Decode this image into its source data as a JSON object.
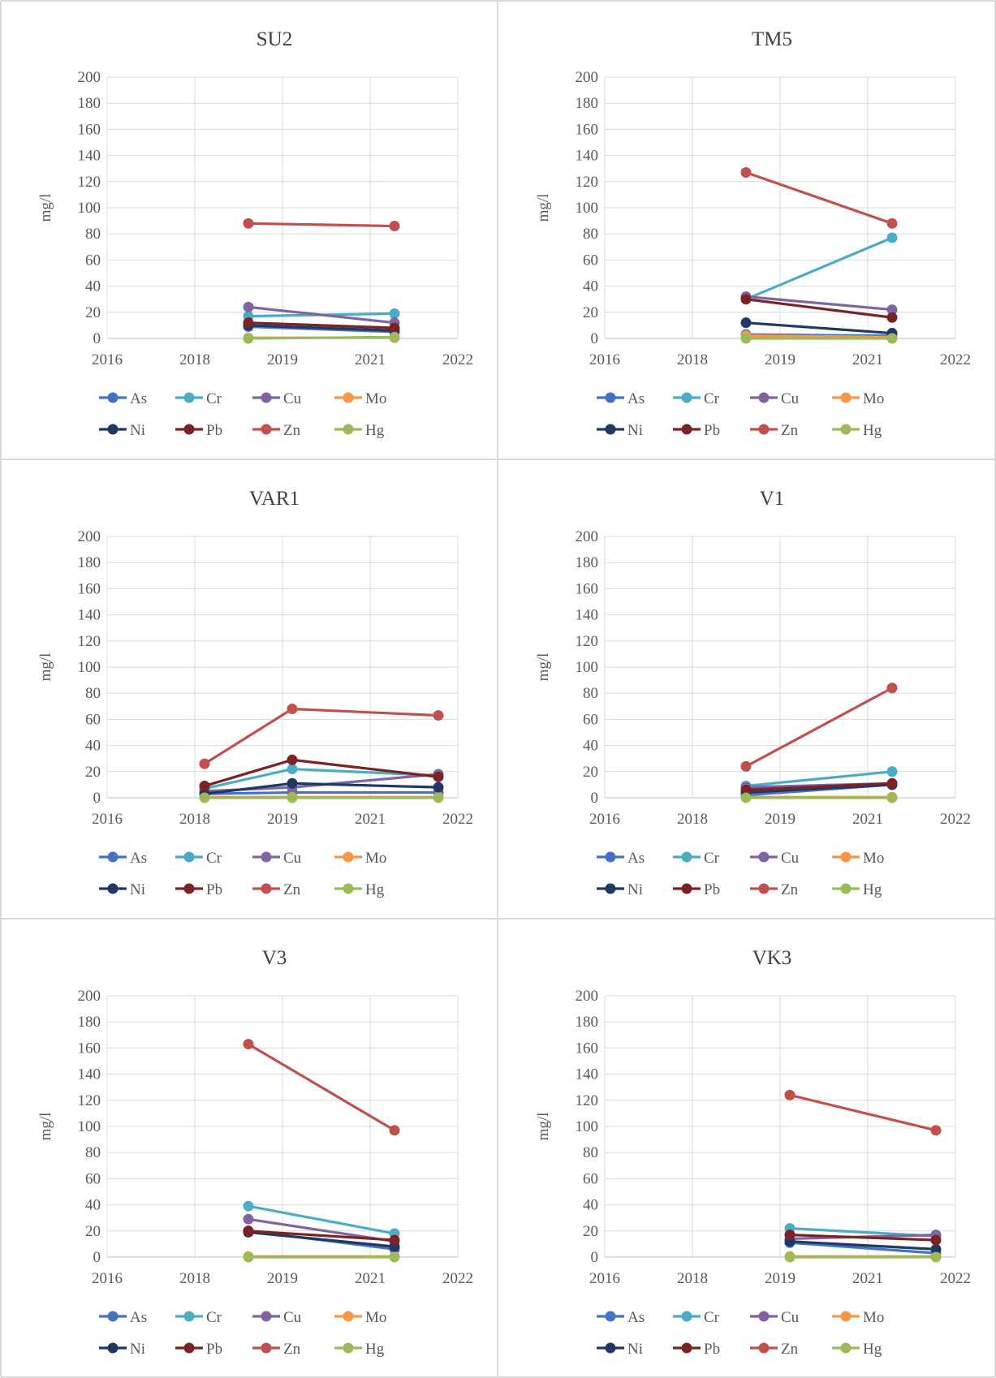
{
  "colors": {
    "As": "#4472c4",
    "Cr": "#4bacc6",
    "Cu": "#8064a2",
    "Mo": "#f79646",
    "Ni": "#1f3864",
    "Pb": "#7b2222",
    "Zn": "#c0504d",
    "Hg": "#9bbb59",
    "border": "#d9d9d9"
  },
  "chart_data": [
    {
      "type": "line",
      "title": "SU2",
      "ylabel": "mg/l",
      "xlabel": "",
      "ylim": [
        0,
        200
      ],
      "yticks": [
        0,
        20,
        40,
        60,
        80,
        100,
        120,
        140,
        160,
        180,
        200
      ],
      "xticks": [
        "2016",
        "2018",
        "2019",
        "2021",
        "2022"
      ],
      "grid": true,
      "legend": "bottom",
      "series": [
        {
          "name": "As",
          "points": [
            {
              "x": "2018-06",
              "y": 9
            },
            {
              "x": "2020-12",
              "y": 5
            }
          ]
        },
        {
          "name": "Cr",
          "points": [
            {
              "x": "2018-06",
              "y": 17
            },
            {
              "x": "2020-12",
              "y": 19
            }
          ]
        },
        {
          "name": "Cu",
          "points": [
            {
              "x": "2018-06",
              "y": 24
            },
            {
              "x": "2020-12",
              "y": 12
            }
          ]
        },
        {
          "name": "Mo",
          "points": [
            {
              "x": "2018-06",
              "y": 0.5
            },
            {
              "x": "2020-12",
              "y": 0.5
            }
          ]
        },
        {
          "name": "Ni",
          "points": [
            {
              "x": "2018-06",
              "y": 10
            },
            {
              "x": "2020-12",
              "y": 6
            }
          ]
        },
        {
          "name": "Pb",
          "points": [
            {
              "x": "2018-06",
              "y": 12
            },
            {
              "x": "2020-12",
              "y": 8
            }
          ]
        },
        {
          "name": "Zn",
          "points": [
            {
              "x": "2018-06",
              "y": 88
            },
            {
              "x": "2020-12",
              "y": 86
            }
          ]
        },
        {
          "name": "Hg",
          "points": [
            {
              "x": "2018-06",
              "y": 0
            },
            {
              "x": "2020-12",
              "y": 1
            }
          ]
        }
      ]
    },
    {
      "type": "line",
      "title": "TM5",
      "ylabel": "mg/l",
      "xlabel": "",
      "ylim": [
        0,
        200
      ],
      "yticks": [
        0,
        20,
        40,
        60,
        80,
        100,
        120,
        140,
        160,
        180,
        200
      ],
      "xticks": [
        "2016",
        "2018",
        "2019",
        "2021",
        "2022"
      ],
      "grid": true,
      "legend": "bottom",
      "series": [
        {
          "name": "As",
          "points": [
            {
              "x": "2018-06",
              "y": 3
            },
            {
              "x": "2020-12",
              "y": 2
            }
          ]
        },
        {
          "name": "Cr",
          "points": [
            {
              "x": "2018-06",
              "y": 30
            },
            {
              "x": "2020-12",
              "y": 77
            }
          ]
        },
        {
          "name": "Cu",
          "points": [
            {
              "x": "2018-06",
              "y": 32
            },
            {
              "x": "2020-12",
              "y": 22
            }
          ]
        },
        {
          "name": "Mo",
          "points": [
            {
              "x": "2018-06",
              "y": 2
            },
            {
              "x": "2020-12",
              "y": 1
            }
          ]
        },
        {
          "name": "Ni",
          "points": [
            {
              "x": "2018-06",
              "y": 12
            },
            {
              "x": "2020-12",
              "y": 4
            }
          ]
        },
        {
          "name": "Pb",
          "points": [
            {
              "x": "2018-06",
              "y": 30
            },
            {
              "x": "2020-12",
              "y": 16
            }
          ]
        },
        {
          "name": "Zn",
          "points": [
            {
              "x": "2018-06",
              "y": 127
            },
            {
              "x": "2020-12",
              "y": 88
            }
          ]
        },
        {
          "name": "Hg",
          "points": [
            {
              "x": "2018-06",
              "y": 0
            },
            {
              "x": "2020-12",
              "y": 0
            }
          ]
        }
      ]
    },
    {
      "type": "line",
      "title": "VAR1",
      "ylabel": "mg/l",
      "xlabel": "",
      "ylim": [
        0,
        200
      ],
      "yticks": [
        0,
        20,
        40,
        60,
        80,
        100,
        120,
        140,
        160,
        180,
        200
      ],
      "xticks": [
        "2016",
        "2018",
        "2019",
        "2021",
        "2022"
      ],
      "grid": true,
      "legend": "bottom",
      "series": [
        {
          "name": "As",
          "points": [
            {
              "x": "2017-09",
              "y": 3
            },
            {
              "x": "2019-03",
              "y": 4
            },
            {
              "x": "2021-09",
              "y": 4
            }
          ]
        },
        {
          "name": "Cr",
          "points": [
            {
              "x": "2017-09",
              "y": 7
            },
            {
              "x": "2019-03",
              "y": 22
            },
            {
              "x": "2021-09",
              "y": 17
            }
          ]
        },
        {
          "name": "Cu",
          "points": [
            {
              "x": "2017-09",
              "y": 5
            },
            {
              "x": "2019-03",
              "y": 8
            },
            {
              "x": "2021-09",
              "y": 18
            }
          ]
        },
        {
          "name": "Mo",
          "points": [
            {
              "x": "2017-09",
              "y": 0.5
            },
            {
              "x": "2019-03",
              "y": 0.5
            },
            {
              "x": "2021-09",
              "y": 0.5
            }
          ]
        },
        {
          "name": "Ni",
          "points": [
            {
              "x": "2017-09",
              "y": 3
            },
            {
              "x": "2019-03",
              "y": 11
            },
            {
              "x": "2021-09",
              "y": 8
            }
          ]
        },
        {
          "name": "Pb",
          "points": [
            {
              "x": "2017-09",
              "y": 9
            },
            {
              "x": "2019-03",
              "y": 29
            },
            {
              "x": "2021-09",
              "y": 16
            }
          ]
        },
        {
          "name": "Zn",
          "points": [
            {
              "x": "2017-09",
              "y": 26
            },
            {
              "x": "2019-03",
              "y": 68
            },
            {
              "x": "2021-09",
              "y": 63
            }
          ]
        },
        {
          "name": "Hg",
          "points": [
            {
              "x": "2017-09",
              "y": 0
            },
            {
              "x": "2019-03",
              "y": 0
            },
            {
              "x": "2021-09",
              "y": 0
            }
          ]
        }
      ]
    },
    {
      "type": "line",
      "title": "V1",
      "ylabel": "mg/l",
      "xlabel": "",
      "ylim": [
        0,
        200
      ],
      "yticks": [
        0,
        20,
        40,
        60,
        80,
        100,
        120,
        140,
        160,
        180,
        200
      ],
      "xticks": [
        "2016",
        "2018",
        "2019",
        "2021",
        "2022"
      ],
      "grid": true,
      "legend": "bottom",
      "series": [
        {
          "name": "As",
          "points": [
            {
              "x": "2018-06",
              "y": 2
            },
            {
              "x": "2020-12",
              "y": 10
            }
          ]
        },
        {
          "name": "Cr",
          "points": [
            {
              "x": "2018-06",
              "y": 9
            },
            {
              "x": "2020-12",
              "y": 20
            }
          ]
        },
        {
          "name": "Cu",
          "points": [
            {
              "x": "2018-06",
              "y": 8
            },
            {
              "x": "2020-12",
              "y": 11
            }
          ]
        },
        {
          "name": "Mo",
          "points": [
            {
              "x": "2018-06",
              "y": 0.5
            },
            {
              "x": "2020-12",
              "y": 0.5
            }
          ]
        },
        {
          "name": "Ni",
          "points": [
            {
              "x": "2018-06",
              "y": 4
            },
            {
              "x": "2020-12",
              "y": 10
            }
          ]
        },
        {
          "name": "Pb",
          "points": [
            {
              "x": "2018-06",
              "y": 6
            },
            {
              "x": "2020-12",
              "y": 11
            }
          ]
        },
        {
          "name": "Zn",
          "points": [
            {
              "x": "2018-06",
              "y": 24
            },
            {
              "x": "2020-12",
              "y": 84
            }
          ]
        },
        {
          "name": "Hg",
          "points": [
            {
              "x": "2018-06",
              "y": 0
            },
            {
              "x": "2020-12",
              "y": 0
            }
          ]
        }
      ]
    },
    {
      "type": "line",
      "title": "V3",
      "ylabel": "mg/l",
      "xlabel": "",
      "ylim": [
        0,
        200
      ],
      "yticks": [
        0,
        20,
        40,
        60,
        80,
        100,
        120,
        140,
        160,
        180,
        200
      ],
      "xticks": [
        "2016",
        "2018",
        "2019",
        "2021",
        "2022"
      ],
      "grid": true,
      "legend": "bottom",
      "series": [
        {
          "name": "As",
          "points": [
            {
              "x": "2018-06",
              "y": 20
            },
            {
              "x": "2020-12",
              "y": 6
            }
          ]
        },
        {
          "name": "Cr",
          "points": [
            {
              "x": "2018-06",
              "y": 39
            },
            {
              "x": "2020-12",
              "y": 18
            }
          ]
        },
        {
          "name": "Cu",
          "points": [
            {
              "x": "2018-06",
              "y": 29
            },
            {
              "x": "2020-12",
              "y": 12
            }
          ]
        },
        {
          "name": "Mo",
          "points": [
            {
              "x": "2018-06",
              "y": 0.5
            },
            {
              "x": "2020-12",
              "y": 0.5
            }
          ]
        },
        {
          "name": "Ni",
          "points": [
            {
              "x": "2018-06",
              "y": 19
            },
            {
              "x": "2020-12",
              "y": 8
            }
          ]
        },
        {
          "name": "Pb",
          "points": [
            {
              "x": "2018-06",
              "y": 20
            },
            {
              "x": "2020-12",
              "y": 13
            }
          ]
        },
        {
          "name": "Zn",
          "points": [
            {
              "x": "2018-06",
              "y": 163
            },
            {
              "x": "2020-12",
              "y": 97
            }
          ]
        },
        {
          "name": "Hg",
          "points": [
            {
              "x": "2018-06",
              "y": 0
            },
            {
              "x": "2020-12",
              "y": 0
            }
          ]
        }
      ]
    },
    {
      "type": "line",
      "title": "VK3",
      "ylabel": "mg/l",
      "xlabel": "",
      "ylim": [
        0,
        200
      ],
      "yticks": [
        0,
        20,
        40,
        60,
        80,
        100,
        120,
        140,
        160,
        180,
        200
      ],
      "xticks": [
        "2016",
        "2018",
        "2019",
        "2021",
        "2022"
      ],
      "grid": true,
      "legend": "bottom",
      "series": [
        {
          "name": "As",
          "points": [
            {
              "x": "2019-03",
              "y": 11
            },
            {
              "x": "2021-09",
              "y": 3
            }
          ]
        },
        {
          "name": "Cr",
          "points": [
            {
              "x": "2019-03",
              "y": 22
            },
            {
              "x": "2021-09",
              "y": 16
            }
          ]
        },
        {
          "name": "Cu",
          "points": [
            {
              "x": "2019-03",
              "y": 14
            },
            {
              "x": "2021-09",
              "y": 17
            }
          ]
        },
        {
          "name": "Mo",
          "points": [
            {
              "x": "2019-03",
              "y": 0.5
            },
            {
              "x": "2021-09",
              "y": 0.5
            }
          ]
        },
        {
          "name": "Ni",
          "points": [
            {
              "x": "2019-03",
              "y": 12
            },
            {
              "x": "2021-09",
              "y": 6
            }
          ]
        },
        {
          "name": "Pb",
          "points": [
            {
              "x": "2019-03",
              "y": 17
            },
            {
              "x": "2021-09",
              "y": 13
            }
          ]
        },
        {
          "name": "Zn",
          "points": [
            {
              "x": "2019-03",
              "y": 124
            },
            {
              "x": "2021-09",
              "y": 97
            }
          ]
        },
        {
          "name": "Hg",
          "points": [
            {
              "x": "2019-03",
              "y": 0
            },
            {
              "x": "2021-09",
              "y": 0
            }
          ]
        }
      ]
    }
  ]
}
